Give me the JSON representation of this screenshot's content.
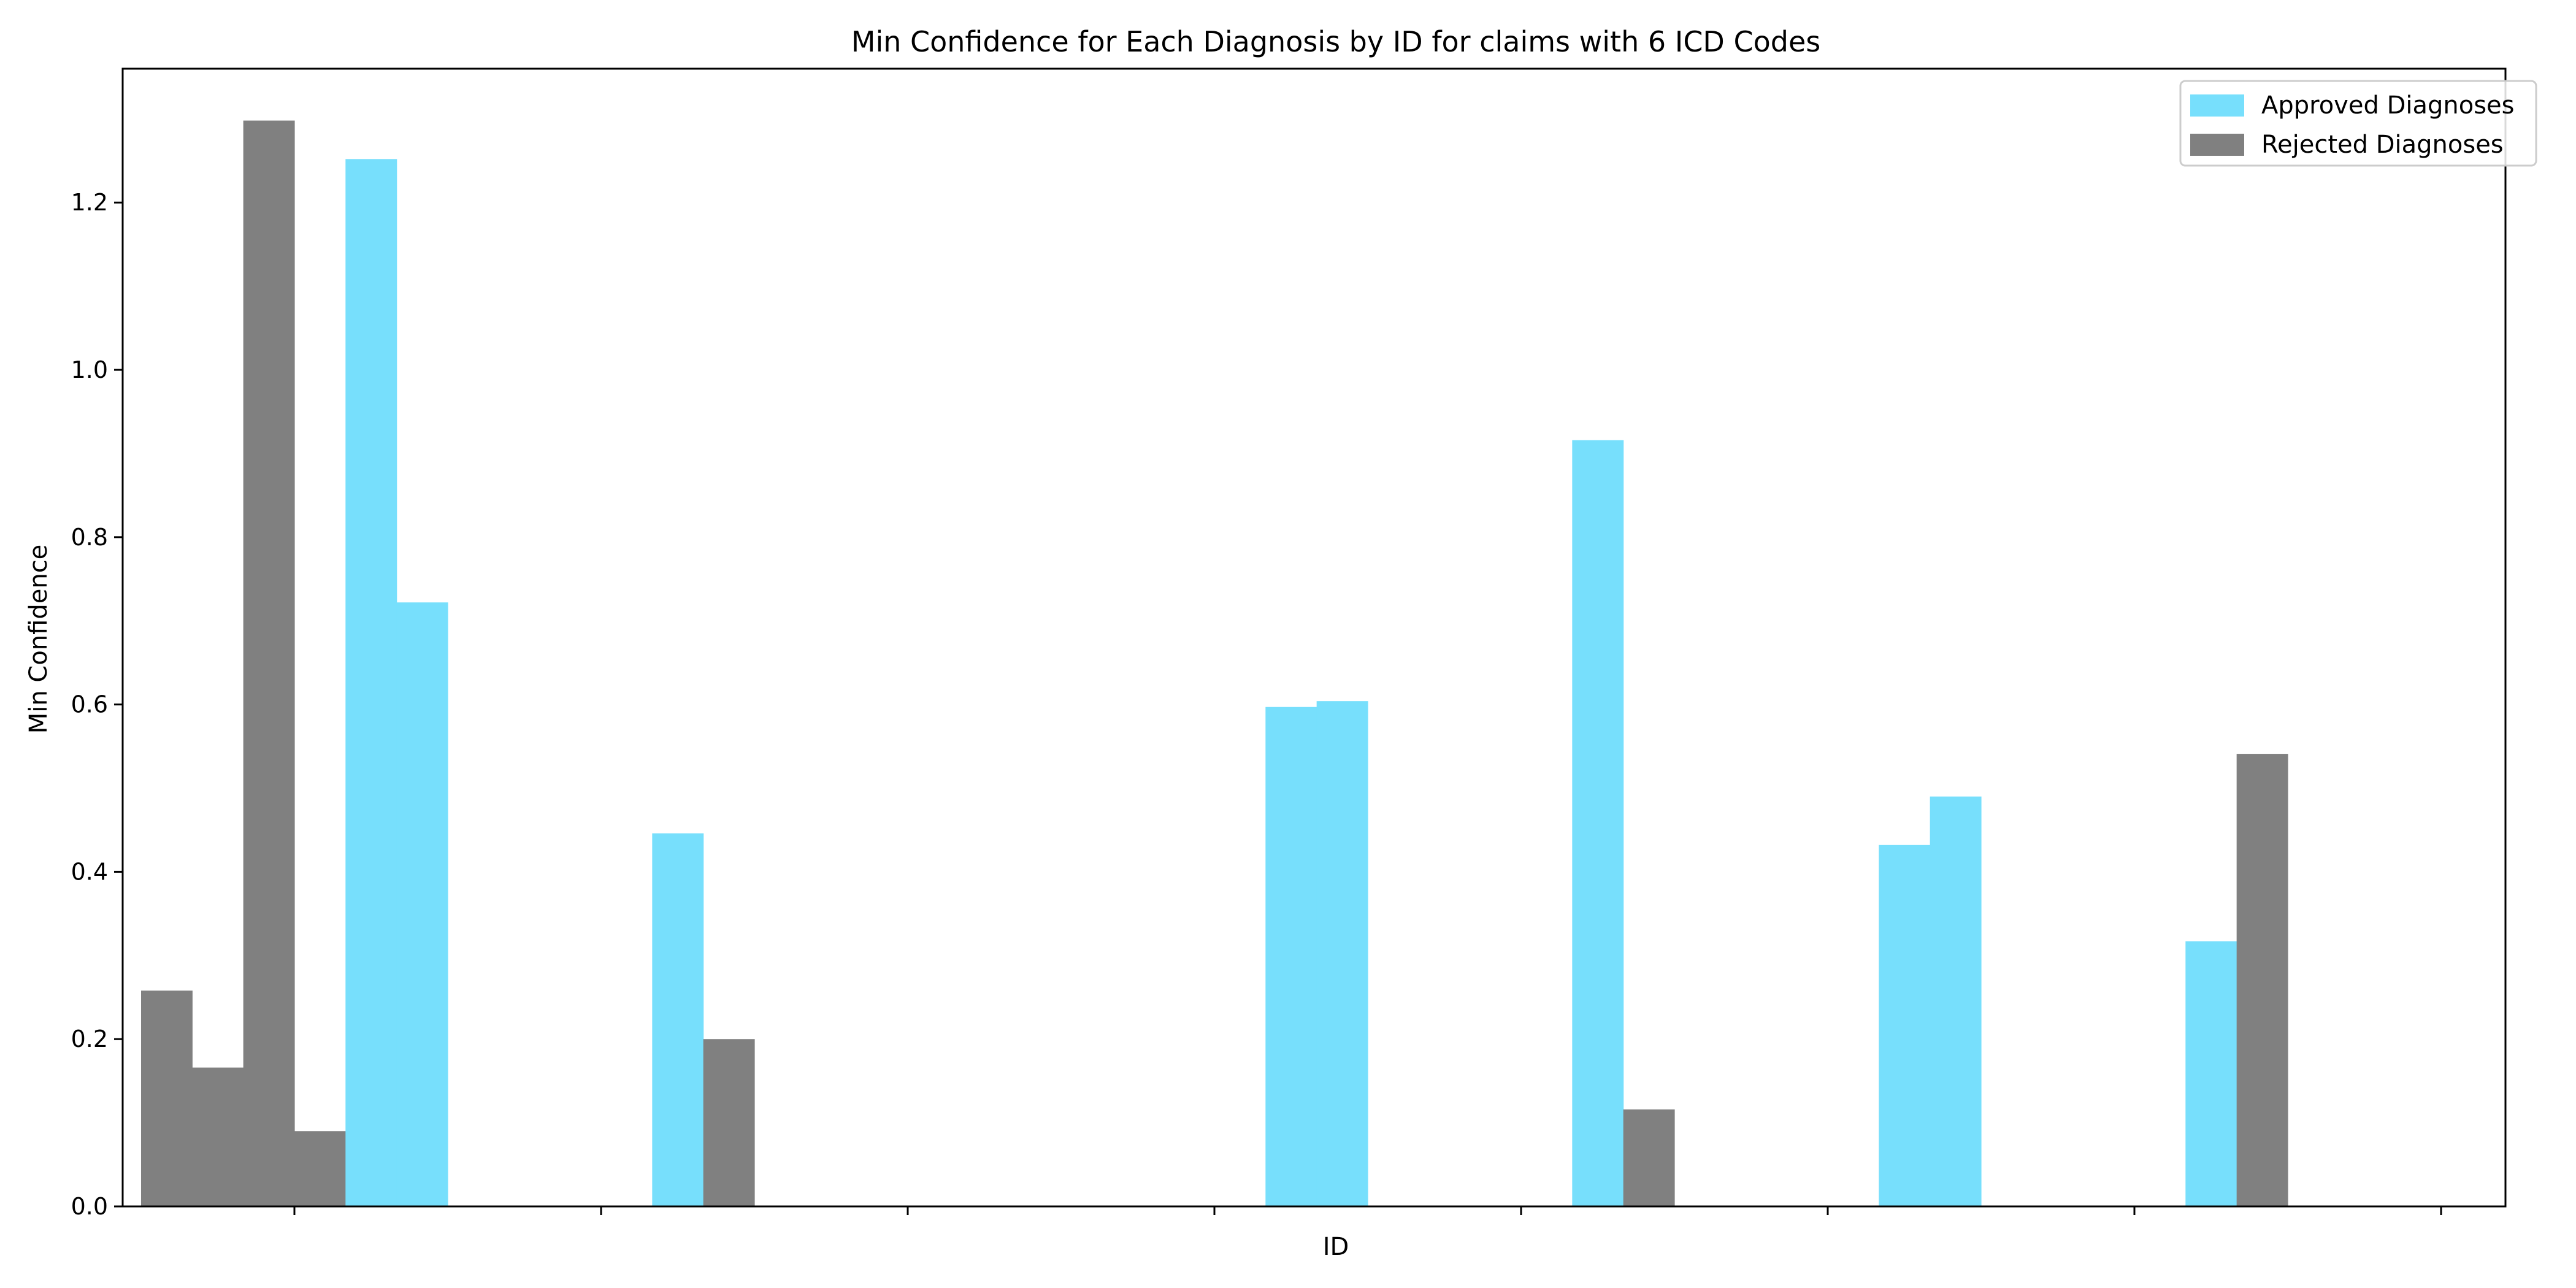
{
  "chart_data": {
    "type": "bar",
    "title": "Min Confidence for Each Diagnosis by ID for claims with 6 ICD Codes",
    "xlabel": "ID",
    "ylabel": "Min Confidence",
    "ylim": [
      0,
      1.36
    ],
    "yticks": [
      "0.0",
      "0.2",
      "0.4",
      "0.6",
      "0.8",
      "1.0",
      "1.2"
    ],
    "xticks": [
      "",
      "",
      "",
      "",
      "",
      "",
      "",
      ""
    ],
    "grid": false,
    "legend": {
      "placement": "top-right",
      "entries": [
        {
          "name": "Approved Diagnoses",
          "color": "#77dffc"
        },
        {
          "name": "Rejected Diagnoses",
          "color": "#808080"
        }
      ]
    },
    "groups": 8,
    "slots_per_group": 6,
    "bars": [
      {
        "group": 0,
        "slot": 0,
        "value": 0.258,
        "status": "rejected"
      },
      {
        "group": 0,
        "slot": 1,
        "value": 0.166,
        "status": "rejected"
      },
      {
        "group": 0,
        "slot": 2,
        "value": 1.298,
        "status": "rejected"
      },
      {
        "group": 0,
        "slot": 3,
        "value": 0.09,
        "status": "rejected"
      },
      {
        "group": 0,
        "slot": 4,
        "value": 1.252,
        "status": "approved"
      },
      {
        "group": 0,
        "slot": 5,
        "value": 0.722,
        "status": "approved"
      },
      {
        "group": 1,
        "slot": 4,
        "value": 0.446,
        "status": "approved"
      },
      {
        "group": 1,
        "slot": 5,
        "value": 0.2,
        "status": "rejected"
      },
      {
        "group": 3,
        "slot": 4,
        "value": 0.597,
        "status": "approved"
      },
      {
        "group": 3,
        "slot": 5,
        "value": 0.604,
        "status": "approved"
      },
      {
        "group": 4,
        "slot": 4,
        "value": 0.916,
        "status": "approved"
      },
      {
        "group": 4,
        "slot": 5,
        "value": 0.116,
        "status": "rejected"
      },
      {
        "group": 5,
        "slot": 4,
        "value": 0.432,
        "status": "approved"
      },
      {
        "group": 5,
        "slot": 5,
        "value": 0.49,
        "status": "approved"
      },
      {
        "group": 6,
        "slot": 4,
        "value": 0.317,
        "status": "approved"
      },
      {
        "group": 6,
        "slot": 5,
        "value": 0.541,
        "status": "rejected"
      }
    ]
  }
}
